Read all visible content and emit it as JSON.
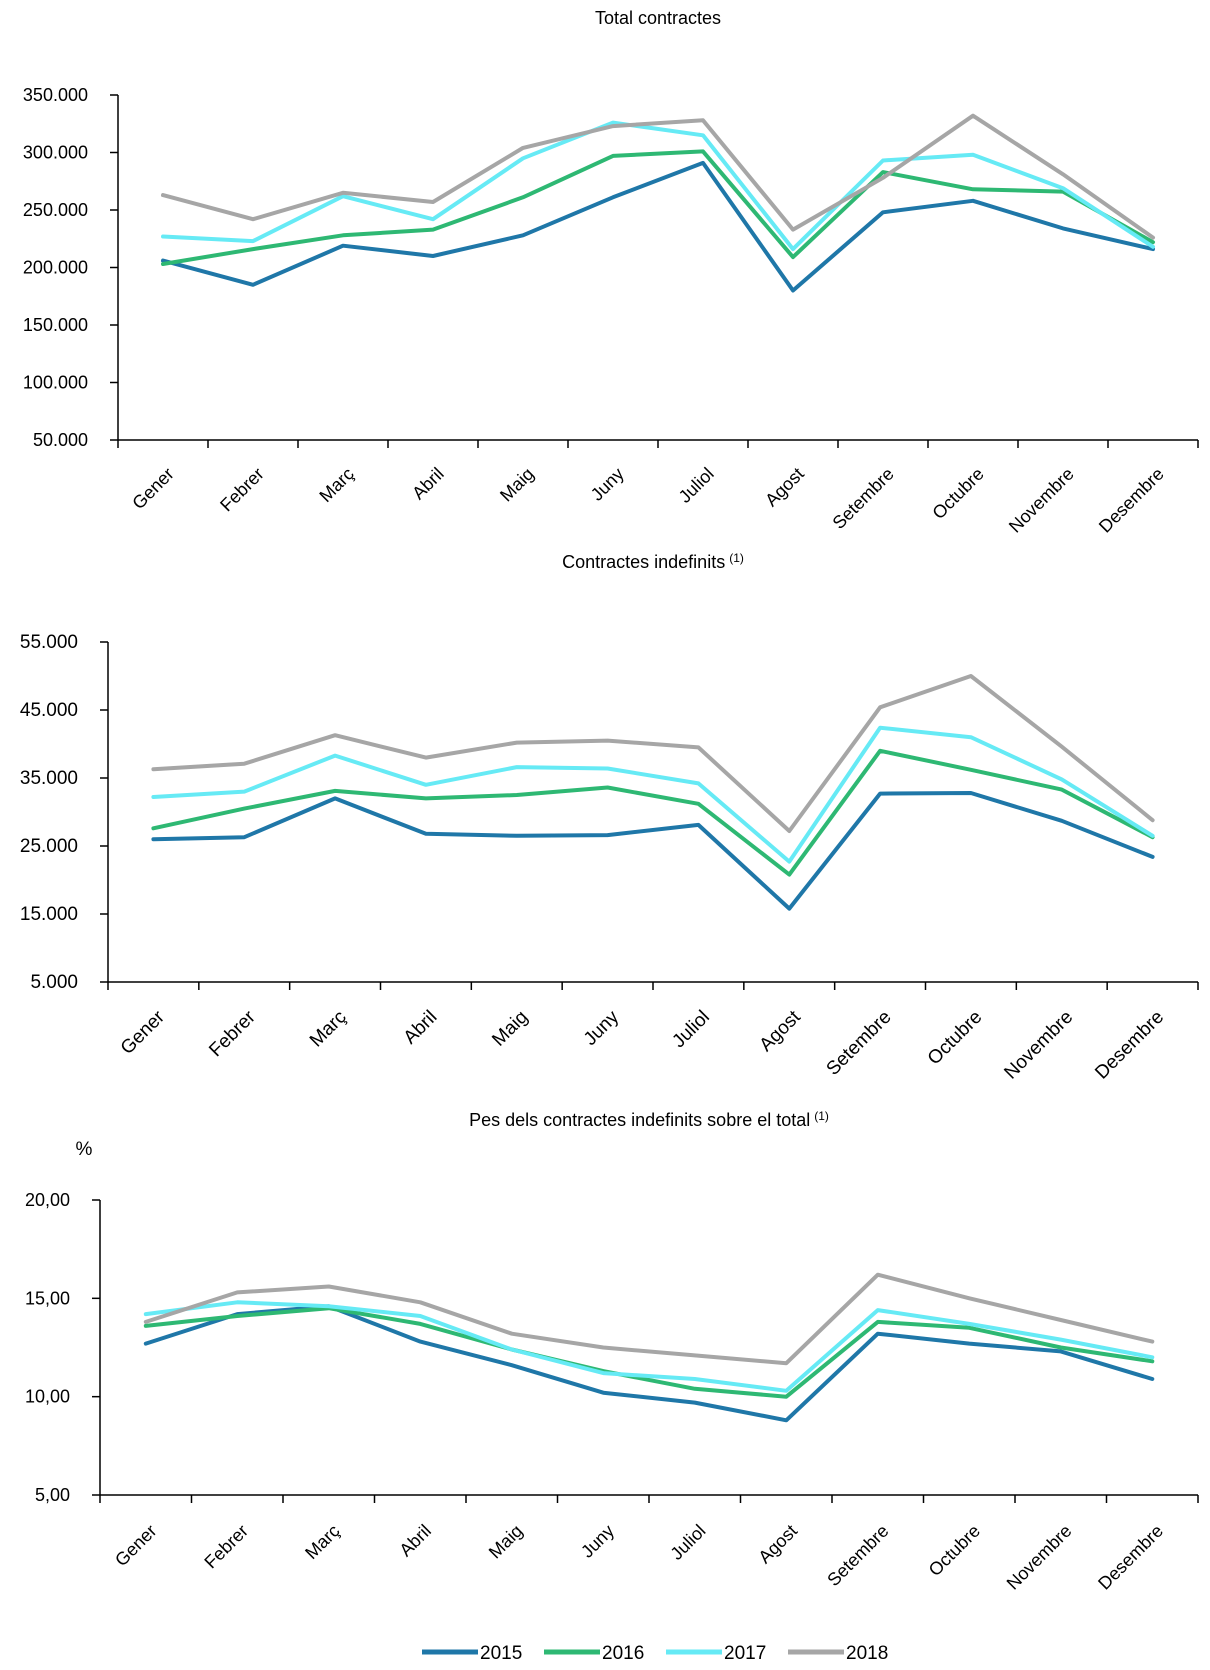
{
  "legend": [
    {
      "name": "2015",
      "color": "#1f77a8"
    },
    {
      "name": "2016",
      "color": "#2eb873"
    },
    {
      "name": "2017",
      "color": "#66eaf5"
    },
    {
      "name": "2018",
      "color": "#a6a6a6"
    }
  ],
  "chart_data": [
    {
      "type": "line",
      "title": "Total contractes",
      "footnote": "",
      "unit_label": "",
      "categories": [
        "Gener",
        "Febrer",
        "Març",
        "Abril",
        "Maig",
        "Juny",
        "Juliol",
        "Agost",
        "Setembre",
        "Octubre",
        "Novembre",
        "Desembre"
      ],
      "ylim": [
        50000,
        350000
      ],
      "yticks": [
        50000,
        100000,
        150000,
        200000,
        250000,
        300000,
        350000
      ],
      "ytick_labels": [
        "50.000",
        "100.000",
        "150.000",
        "200.000",
        "250.000",
        "300.000",
        "350.000"
      ],
      "series": [
        {
          "name": "2015",
          "color": "#1f77a8",
          "values": [
            206000,
            185000,
            219000,
            210000,
            228000,
            261000,
            291000,
            180000,
            248000,
            258000,
            234000,
            216000
          ]
        },
        {
          "name": "2016",
          "color": "#2eb873",
          "values": [
            203000,
            216000,
            228000,
            233000,
            261000,
            297000,
            301000,
            209000,
            283000,
            268000,
            266000,
            222000
          ]
        },
        {
          "name": "2017",
          "color": "#66eaf5",
          "values": [
            227000,
            223000,
            262000,
            242000,
            295000,
            326000,
            315000,
            216000,
            293000,
            298000,
            269000,
            218000
          ]
        },
        {
          "name": "2018",
          "color": "#a6a6a6",
          "values": [
            263000,
            242000,
            265000,
            257000,
            304000,
            323000,
            328000,
            233000,
            278000,
            332000,
            281000,
            226000
          ]
        }
      ]
    },
    {
      "type": "line",
      "title": "Contractes indefinits",
      "footnote": "(1)",
      "unit_label": "",
      "categories": [
        "Gener",
        "Febrer",
        "Març",
        "Abril",
        "Maig",
        "Juny",
        "Juliol",
        "Agost",
        "Setembre",
        "Octubre",
        "Novembre",
        "Desembre"
      ],
      "ylim": [
        5000,
        55000
      ],
      "yticks": [
        5000,
        15000,
        25000,
        35000,
        45000,
        55000
      ],
      "ytick_labels": [
        "5.000",
        "15.000",
        "25.000",
        "35.000",
        "45.000",
        "55.000"
      ],
      "series": [
        {
          "name": "2015",
          "color": "#1f77a8",
          "values": [
            26000,
            26300,
            32000,
            26800,
            26500,
            26600,
            28100,
            15800,
            32700,
            32800,
            28700,
            23400
          ]
        },
        {
          "name": "2016",
          "color": "#2eb873",
          "values": [
            27600,
            30500,
            33100,
            32000,
            32500,
            33600,
            31200,
            20800,
            39000,
            36200,
            33300,
            26300
          ]
        },
        {
          "name": "2017",
          "color": "#66eaf5",
          "values": [
            32200,
            33000,
            38300,
            34000,
            36600,
            36400,
            34200,
            22700,
            42400,
            41000,
            34800,
            26500
          ]
        },
        {
          "name": "2018",
          "color": "#a6a6a6",
          "values": [
            36300,
            37100,
            41300,
            38000,
            40200,
            40500,
            39500,
            27200,
            45400,
            50000,
            39600,
            28800
          ]
        }
      ]
    },
    {
      "type": "line",
      "title": "Pes dels contractes indefinits sobre el total",
      "footnote": "(1)",
      "unit_label": "%",
      "categories": [
        "Gener",
        "Febrer",
        "Març",
        "Abril",
        "Maig",
        "Juny",
        "Juliol",
        "Agost",
        "Setembre",
        "Octubre",
        "Novembre",
        "Desembre"
      ],
      "ylim": [
        5,
        20
      ],
      "yticks": [
        5,
        10,
        15,
        20
      ],
      "ytick_labels": [
        "5,00",
        "10,00",
        "15,00",
        "20,00"
      ],
      "series": [
        {
          "name": "2015",
          "color": "#1f77a8",
          "values": [
            12.7,
            14.2,
            14.6,
            12.8,
            11.6,
            10.2,
            9.7,
            8.8,
            13.2,
            12.7,
            12.3,
            10.9
          ]
        },
        {
          "name": "2016",
          "color": "#2eb873",
          "values": [
            13.6,
            14.1,
            14.5,
            13.7,
            12.4,
            11.3,
            10.4,
            10.0,
            13.8,
            13.5,
            12.5,
            11.8
          ]
        },
        {
          "name": "2017",
          "color": "#66eaf5",
          "values": [
            14.2,
            14.8,
            14.6,
            14.1,
            12.4,
            11.2,
            10.9,
            10.3,
            14.4,
            13.7,
            12.9,
            12.0
          ]
        },
        {
          "name": "2018",
          "color": "#a6a6a6",
          "values": [
            13.8,
            15.3,
            15.6,
            14.8,
            13.2,
            12.5,
            12.1,
            11.7,
            16.2,
            15.0,
            13.9,
            12.8
          ]
        }
      ]
    }
  ]
}
